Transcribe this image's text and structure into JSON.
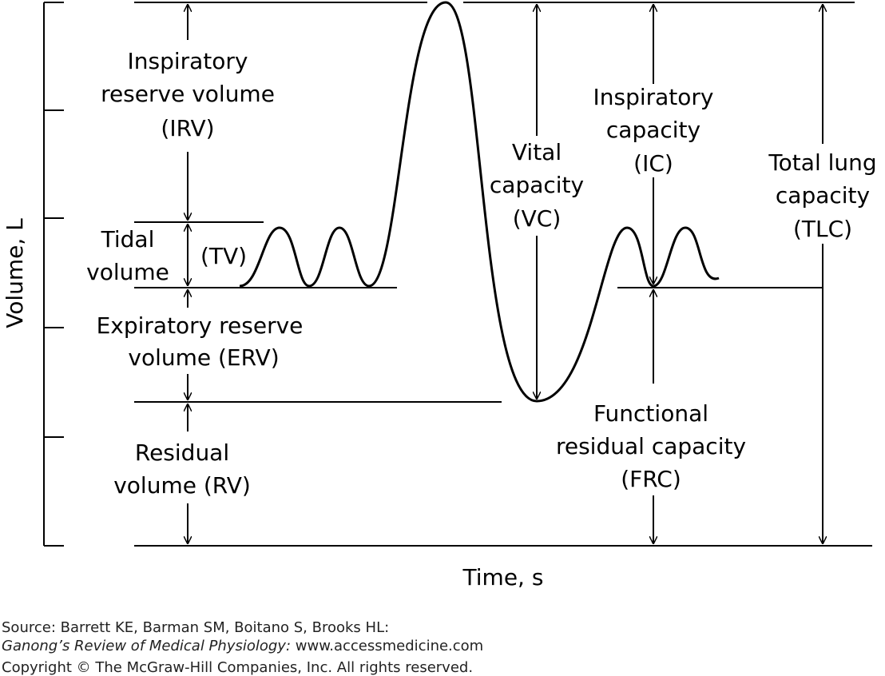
{
  "axes": {
    "y_label": "Volume, L",
    "x_label": "Time, s"
  },
  "labels": {
    "irv": [
      "Inspiratory",
      "reserve volume",
      "(IRV)"
    ],
    "tidal": [
      "Tidal",
      "volume"
    ],
    "tv": "(TV)",
    "erv": [
      "Expiratory reserve",
      "volume (ERV)"
    ],
    "rv": [
      "Residual",
      "volume (RV)"
    ],
    "vc": [
      "Vital",
      "capacity",
      "(VC)"
    ],
    "ic": [
      "Inspiratory",
      "capacity",
      "(IC)"
    ],
    "tlc": [
      "Total lung",
      "capacity",
      "(TLC)"
    ],
    "frc": [
      "Functional",
      "residual capacity",
      "(FRC)"
    ]
  },
  "source": {
    "line1": "Source: Barrett KE, Barman SM, Boitano S, Brooks HL:",
    "line2_italic": "Ganong’s Review of Medical Physiology:",
    "line2_rest": " www.accessmedicine.com",
    "line3": "Copyright © The McGraw-Hill Companies, Inc. All rights reserved."
  }
}
